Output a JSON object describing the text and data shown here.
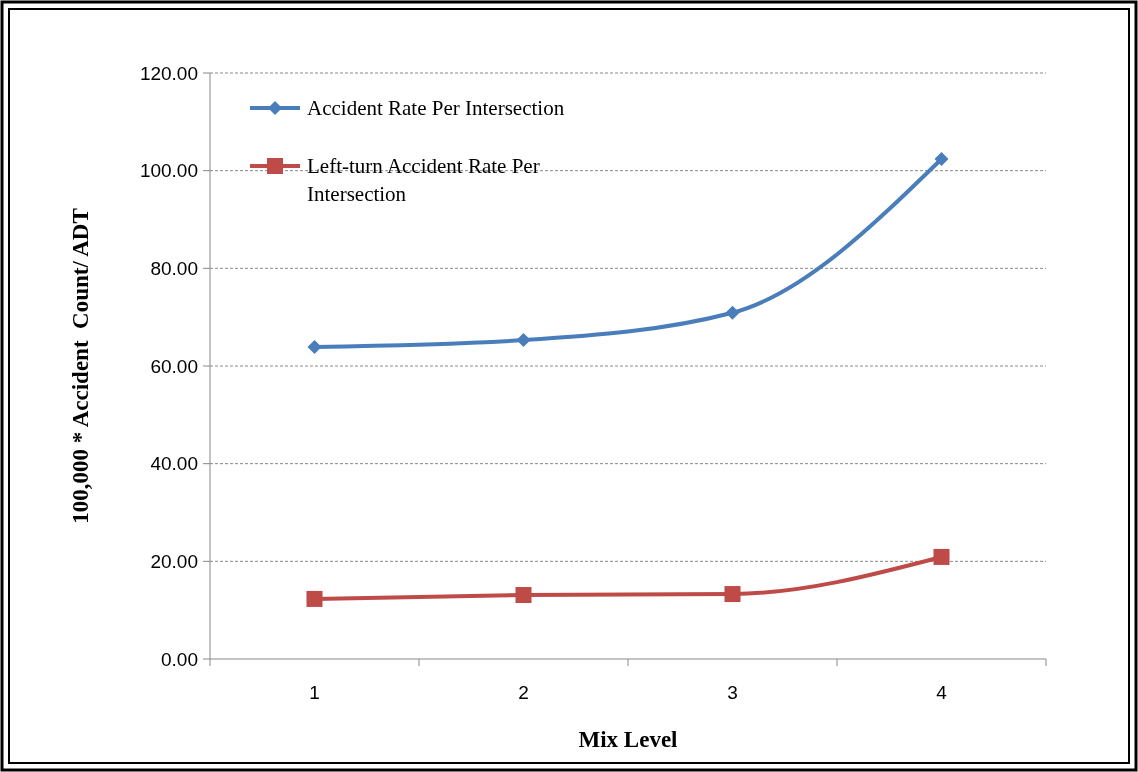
{
  "chart_data": {
    "type": "line",
    "xlabel": "Mix Level",
    "ylabel": "100,000 * Accident  Count/ ADT",
    "categories": [
      "1",
      "2",
      "3",
      "4"
    ],
    "series": [
      {
        "name": "Accident Rate Per Intersection",
        "color": "#4a7ebb",
        "marker": "diamond",
        "values": [
          63.9,
          65.3,
          70.9,
          102.4
        ]
      },
      {
        "name": "Left-turn Accident Rate Per Intersection",
        "color": "#be4b48",
        "marker": "square",
        "values": [
          12.3,
          13.1,
          13.3,
          20.9
        ]
      }
    ],
    "ylim": [
      0,
      120
    ],
    "yticks": [
      {
        "value": 0,
        "label": "0.00"
      },
      {
        "value": 20,
        "label": "20.00"
      },
      {
        "value": 40,
        "label": "40.00"
      },
      {
        "value": 60,
        "label": "60.00"
      },
      {
        "value": 80,
        "label": "80.00"
      },
      {
        "value": 100,
        "label": "100.00"
      },
      {
        "value": 120,
        "label": "120.00"
      }
    ],
    "grid": "y",
    "legend": "top left",
    "line_style": "solid"
  }
}
